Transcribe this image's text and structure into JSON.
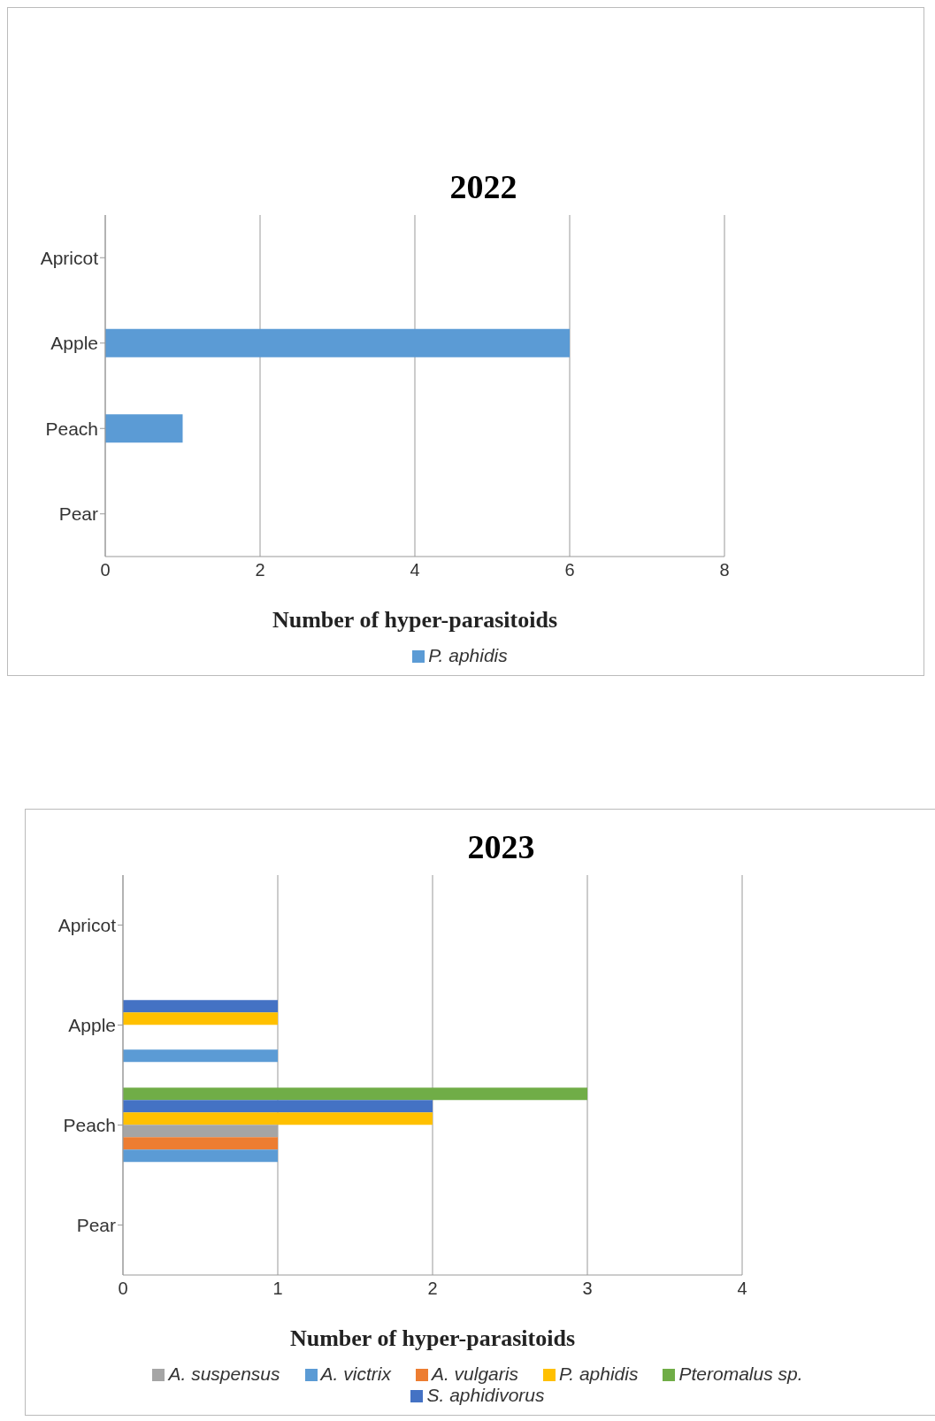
{
  "chart_data": [
    {
      "type": "bar",
      "orientation": "horizontal",
      "title": "2022",
      "xlabel": "Number of hyper-parasitoids",
      "categories": [
        "Apricot",
        "Apple",
        "Peach",
        "Pear"
      ],
      "series": [
        {
          "name": "P. aphidis",
          "color": "#5b9bd5",
          "values": [
            0,
            6,
            1,
            0
          ]
        }
      ],
      "xlim": [
        0,
        8
      ],
      "xticks": [
        0,
        2,
        4,
        6,
        8
      ],
      "grid": "x",
      "legend": "bottom"
    },
    {
      "type": "bar",
      "orientation": "horizontal",
      "title": "2023",
      "xlabel": "Number of hyper-parasitoids",
      "categories": [
        "Apricot",
        "Apple",
        "Peach",
        "Pear"
      ],
      "series": [
        {
          "name": "Pteromalus sp.",
          "color": "#70ad47",
          "values": [
            0,
            0,
            3,
            0
          ]
        },
        {
          "name": "S. aphidivorus",
          "color": "#4472c4",
          "values": [
            0,
            1,
            2,
            0
          ]
        },
        {
          "name": "P. aphidis",
          "color": "#ffc000",
          "values": [
            0,
            1,
            2,
            0
          ]
        },
        {
          "name": "A. suspensus",
          "color": "#a5a5a5",
          "values": [
            0,
            0,
            1,
            0
          ]
        },
        {
          "name": "A. vulgaris",
          "color": "#ed7d31",
          "values": [
            0,
            0,
            1,
            0
          ]
        },
        {
          "name": "A. victrix",
          "color": "#5b9bd5",
          "values": [
            0,
            1,
            1,
            0
          ]
        }
      ],
      "xlim": [
        0,
        4
      ],
      "xticks": [
        0,
        1,
        2,
        3,
        4
      ],
      "grid": "x",
      "legend": "bottom"
    }
  ]
}
